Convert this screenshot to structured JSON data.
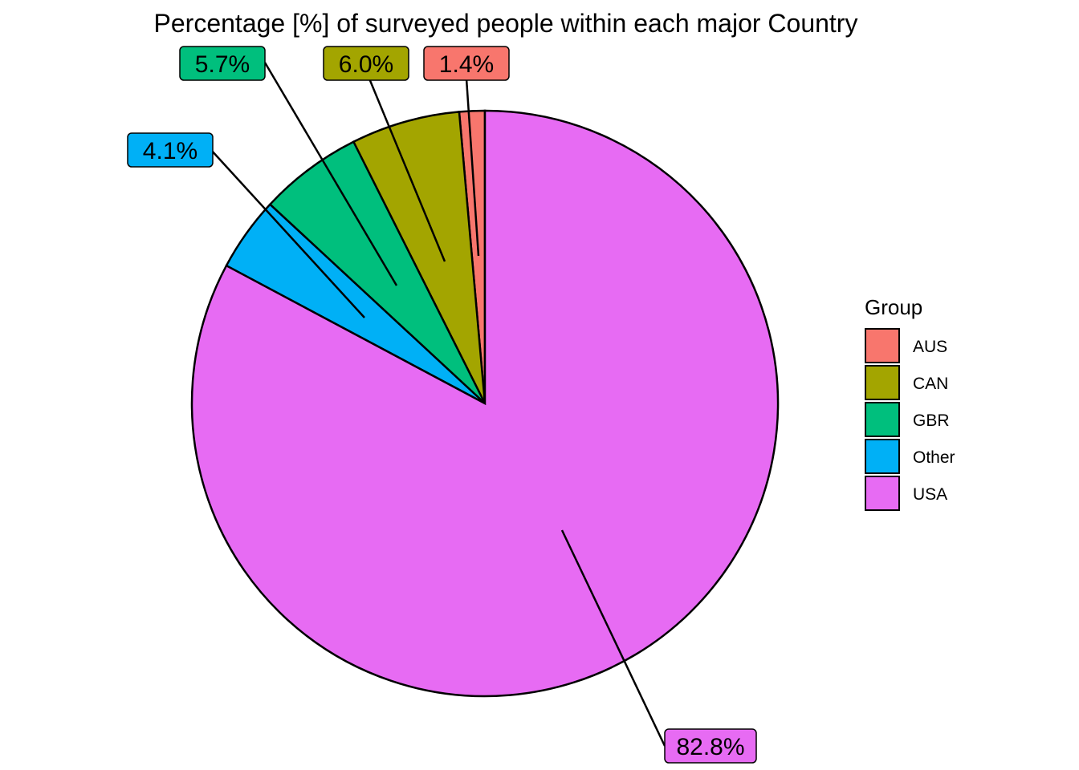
{
  "chart_data": {
    "type": "pie",
    "title": "Percentage [%] of surveyed people within each major Country",
    "legend": {
      "title": "Group",
      "position": "right"
    },
    "slices": [
      {
        "label": "AUS",
        "value": 1.4,
        "display": "1.4%",
        "color": "#F8766D"
      },
      {
        "label": "CAN",
        "value": 6.0,
        "display": "6.0%",
        "color": "#A3A500"
      },
      {
        "label": "GBR",
        "value": 5.7,
        "display": "5.7%",
        "color": "#00BF7D"
      },
      {
        "label": "Other",
        "value": 4.1,
        "display": "4.1%",
        "color": "#00B0F6"
      },
      {
        "label": "USA",
        "value": 82.8,
        "display": "82.8%",
        "color": "#E76BF3"
      }
    ]
  }
}
